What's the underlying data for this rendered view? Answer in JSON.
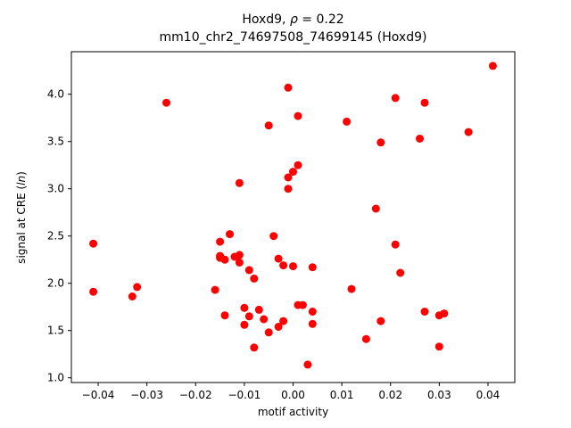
{
  "figure": {
    "title_line1_pre": "Hoxd9, ",
    "title_line1_italic": "ρ",
    "title_line1_post": " = 0.22",
    "title_line2": "mm10_chr2_74697508_74699145 (Hoxd9)",
    "ylabel_pre": "signal at CRE (",
    "ylabel_italic": "ln",
    "ylabel_post": ")"
  },
  "chart_data": {
    "type": "scatter",
    "title": "Hoxd9, ρ = 0.22\nmm10_chr2_74697508_74699145 (Hoxd9)",
    "xlabel": "motif activity",
    "ylabel": "signal at CRE (ln)",
    "marker_color": "#ff0000",
    "axis_color": "#000000",
    "xlim": [
      -0.0455,
      0.0455
    ],
    "ylim": [
      0.95,
      4.45
    ],
    "xticks": [
      -0.04,
      -0.03,
      -0.02,
      -0.01,
      0.0,
      0.01,
      0.02,
      0.03,
      0.04
    ],
    "xtick_labels": [
      "−0.04",
      "−0.03",
      "−0.02",
      "−0.01",
      "0.00",
      "0.01",
      "0.02",
      "0.03",
      "0.04"
    ],
    "yticks": [
      1.0,
      1.5,
      2.0,
      2.5,
      3.0,
      3.5,
      4.0
    ],
    "ytick_labels": [
      "1.0",
      "1.5",
      "2.0",
      "2.5",
      "3.0",
      "3.5",
      "4.0"
    ],
    "grid": false,
    "legend": null,
    "points": [
      [
        -0.041,
        2.42
      ],
      [
        -0.041,
        1.91
      ],
      [
        -0.033,
        1.86
      ],
      [
        -0.032,
        1.96
      ],
      [
        -0.026,
        3.91
      ],
      [
        -0.016,
        1.93
      ],
      [
        -0.015,
        2.44
      ],
      [
        -0.015,
        2.29
      ],
      [
        -0.015,
        2.27
      ],
      [
        -0.014,
        2.25
      ],
      [
        -0.014,
        1.66
      ],
      [
        -0.013,
        2.52
      ],
      [
        -0.012,
        2.28
      ],
      [
        -0.011,
        3.06
      ],
      [
        -0.011,
        2.3
      ],
      [
        -0.011,
        2.22
      ],
      [
        -0.01,
        1.74
      ],
      [
        -0.01,
        1.56
      ],
      [
        -0.009,
        2.14
      ],
      [
        -0.009,
        1.65
      ],
      [
        -0.008,
        2.05
      ],
      [
        -0.008,
        1.32
      ],
      [
        -0.007,
        1.72
      ],
      [
        -0.006,
        1.62
      ],
      [
        -0.005,
        3.67
      ],
      [
        -0.005,
        1.48
      ],
      [
        -0.004,
        2.5
      ],
      [
        -0.003,
        2.26
      ],
      [
        -0.003,
        1.54
      ],
      [
        -0.002,
        2.19
      ],
      [
        -0.002,
        1.6
      ],
      [
        -0.001,
        4.07
      ],
      [
        -0.001,
        3.12
      ],
      [
        -0.001,
        3.0
      ],
      [
        0.0,
        3.18
      ],
      [
        0.0,
        2.18
      ],
      [
        0.001,
        3.77
      ],
      [
        0.001,
        3.25
      ],
      [
        0.001,
        1.77
      ],
      [
        0.002,
        1.77
      ],
      [
        0.003,
        1.14
      ],
      [
        0.004,
        2.17
      ],
      [
        0.004,
        1.7
      ],
      [
        0.004,
        1.57
      ],
      [
        0.011,
        3.71
      ],
      [
        0.012,
        1.94
      ],
      [
        0.015,
        1.41
      ],
      [
        0.017,
        2.79
      ],
      [
        0.018,
        3.49
      ],
      [
        0.018,
        1.6
      ],
      [
        0.021,
        3.96
      ],
      [
        0.021,
        2.41
      ],
      [
        0.022,
        2.11
      ],
      [
        0.026,
        3.53
      ],
      [
        0.027,
        3.91
      ],
      [
        0.027,
        1.7
      ],
      [
        0.03,
        1.66
      ],
      [
        0.03,
        1.33
      ],
      [
        0.031,
        1.68
      ],
      [
        0.036,
        3.6
      ],
      [
        0.041,
        4.3
      ]
    ]
  }
}
